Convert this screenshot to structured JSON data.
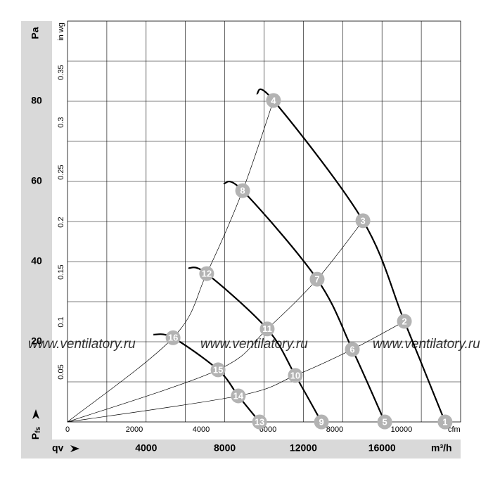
{
  "chart_data": {
    "type": "line",
    "y_label": "Pa",
    "y2_label": "in wg",
    "x_label": "qv",
    "x_unit": "m³/h",
    "x2_unit": "cfm",
    "pressure_symbol": "P",
    "pressure_subscript": "fs",
    "watermark": "www.ventilatory.ru",
    "xlim": [
      0,
      20000
    ],
    "xticks": [
      4000,
      8000,
      12000,
      16000
    ],
    "x_gridlines": [
      2000,
      4000,
      6000,
      8000,
      10000,
      12000,
      14000,
      16000,
      18000
    ],
    "x2lim": [
      0,
      11770
    ],
    "x2ticks": [
      0,
      2000,
      4000,
      6000,
      8000,
      10000
    ],
    "ylim": [
      0,
      100
    ],
    "yticks": [
      20,
      40,
      60,
      80
    ],
    "y_gridlines": [
      10,
      20,
      30,
      40,
      50,
      60,
      70,
      80,
      90
    ],
    "y2lim": [
      0,
      0.4015
    ],
    "y2ticks": [
      0.05,
      0.1,
      0.15,
      0.2,
      0.25,
      0.3,
      0.35
    ],
    "grid": true,
    "series": [
      {
        "kind": "fan",
        "color": "#000000",
        "x": [
          9620,
          10480,
          15030,
          17140,
          19210
        ],
        "values": [
          81.9,
          80.2,
          50.2,
          25.1,
          0
        ],
        "point_labels": [
          null,
          "4",
          "3",
          "2",
          "1"
        ]
      },
      {
        "kind": "fan",
        "color": "#000000",
        "x": [
          7940,
          8910,
          12700,
          14490,
          16140
        ],
        "values": [
          59.5,
          57.7,
          35.6,
          18.1,
          0
        ],
        "point_labels": [
          null,
          "8",
          "7",
          "6",
          "5"
        ]
      },
      {
        "kind": "fan",
        "color": "#000000",
        "x": [
          6150,
          7080,
          10160,
          11590,
          12920
        ],
        "values": [
          38.4,
          37.0,
          23.2,
          11.6,
          0
        ],
        "point_labels": [
          null,
          "12",
          "11",
          "10",
          "9"
        ]
      },
      {
        "kind": "fan",
        "color": "#000000",
        "x": [
          4370,
          5370,
          7660,
          8690,
          9770
        ],
        "values": [
          21.8,
          21.0,
          13.0,
          6.5,
          0
        ],
        "point_labels": [
          null,
          "16",
          "15",
          "14",
          "13"
        ]
      },
      {
        "kind": "system",
        "color": "#000000",
        "x": [
          0,
          5370,
          7080,
          8910,
          10480
        ],
        "values": [
          0,
          21.0,
          37.0,
          57.7,
          80.2
        ]
      },
      {
        "kind": "system",
        "color": "#000000",
        "x": [
          0,
          7660,
          10160,
          12700,
          15030
        ],
        "values": [
          0,
          13.0,
          23.2,
          35.6,
          50.2
        ]
      },
      {
        "kind": "system",
        "color": "#000000",
        "x": [
          0,
          8690,
          11590,
          14490,
          17140
        ],
        "values": [
          0,
          6.5,
          11.6,
          18.1,
          25.1
        ]
      }
    ]
  }
}
